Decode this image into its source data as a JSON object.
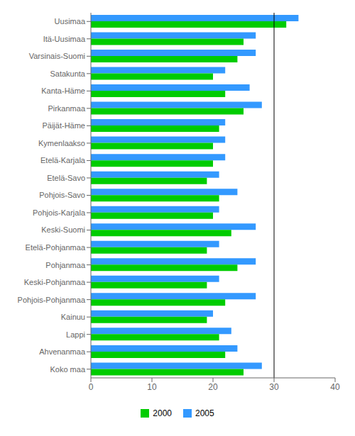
{
  "chart_data": {
    "type": "bar",
    "orientation": "horizontal",
    "categories": [
      "Uusimaa",
      "Itä-Uusimaa",
      "Varsinais-Suomi",
      "Satakunta",
      "Kanta-Häme",
      "Pirkanmaa",
      "Päijät-Häme",
      "Kymenlaakso",
      "Etelä-Karjala",
      "Etelä-Savo",
      "Pohjois-Savo",
      "Pohjois-Karjala",
      "Keski-Suomi",
      "Etelä-Pohjanmaa",
      "Pohjanmaa",
      "Keski-Pohjanmaa",
      "Pohjois-Pohjanmaa",
      "Kainuu",
      "Lappi",
      "Ahvenanmaa",
      "Koko maa"
    ],
    "series": [
      {
        "name": "2000",
        "color": "#00cc00",
        "values": [
          32,
          25,
          24,
          20,
          22,
          25,
          21,
          20,
          20,
          19,
          21,
          20,
          23,
          19,
          24,
          19,
          22,
          19,
          21,
          22,
          25
        ]
      },
      {
        "name": "2005",
        "color": "#3399ff",
        "values": [
          34,
          27,
          27,
          22,
          26,
          28,
          22,
          22,
          22,
          21,
          24,
          21,
          27,
          21,
          27,
          21,
          27,
          20,
          23,
          24,
          28
        ]
      }
    ],
    "xlim": [
      0,
      40
    ],
    "xticks": [
      0,
      10,
      20,
      30,
      40
    ],
    "vline_x": 30,
    "grid": false,
    "legend": "bottom"
  }
}
